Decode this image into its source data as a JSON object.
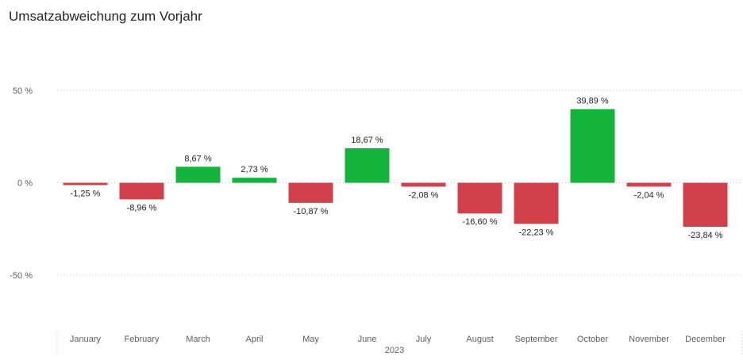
{
  "title": "Umsatzabweichung zum Vorjahr",
  "chart_data": {
    "type": "bar",
    "title": "Umsatzabweichung zum Vorjahr",
    "categories": [
      "January",
      "February",
      "March",
      "April",
      "May",
      "June",
      "July",
      "August",
      "September",
      "October",
      "November",
      "December"
    ],
    "x_group_label": "2023",
    "values": [
      -1.25,
      -8.96,
      8.67,
      2.73,
      -10.87,
      18.67,
      -2.08,
      -16.6,
      -22.23,
      39.89,
      -2.04,
      -23.84
    ],
    "data_labels": [
      "-1,25 %",
      "-8,96 %",
      "8,67 %",
      "2,73 %",
      "-10,87 %",
      "18,67 %",
      "-2,08 %",
      "-16,60 %",
      "-22,23 %",
      "39,89 %",
      "-2,04 %",
      "-23,84 %"
    ],
    "y_ticks": [
      50,
      0,
      -50
    ],
    "y_tick_labels": [
      "50 %",
      "0 %",
      "-50 %"
    ],
    "ylim": [
      -80,
      80
    ],
    "grid": true,
    "legend": "none",
    "colors": {
      "positive": "#14b43c",
      "negative": "#d2414b",
      "gridline": "#c8c6c4",
      "tick_text": "#605e5c",
      "label_text": "#252423"
    }
  }
}
